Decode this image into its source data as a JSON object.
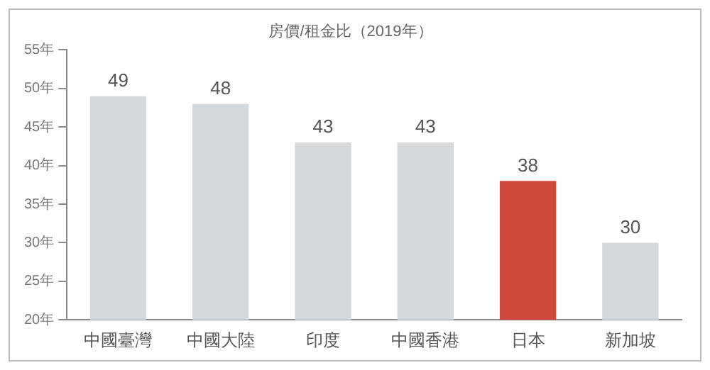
{
  "chart_data": {
    "type": "bar",
    "title": "房價/租金比（2019年）",
    "categories": [
      "中國臺灣",
      "中國大陸",
      "印度",
      "中國香港",
      "日本",
      "新加坡"
    ],
    "values": [
      49,
      48,
      43,
      43,
      38,
      30
    ],
    "colors": [
      "#d5d9dc",
      "#d5d9dc",
      "#d5d9dc",
      "#d5d9dc",
      "#cf4a3c",
      "#d5d9dc"
    ],
    "ylim": [
      20,
      55
    ],
    "yticks": [
      {
        "value": 20,
        "label": "20年"
      },
      {
        "value": 25,
        "label": "25年"
      },
      {
        "value": 30,
        "label": "30年"
      },
      {
        "value": 35,
        "label": "35年"
      },
      {
        "value": 40,
        "label": "40年"
      },
      {
        "value": 45,
        "label": "45年"
      },
      {
        "value": 50,
        "label": "50年"
      },
      {
        "value": 55,
        "label": "55年"
      }
    ],
    "data_labels": true,
    "grid": false,
    "legend": false
  }
}
